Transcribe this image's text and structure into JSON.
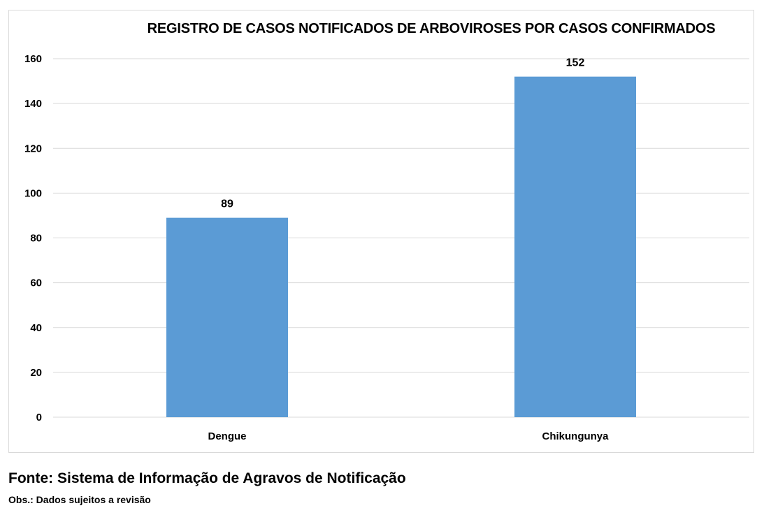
{
  "chart_data": {
    "type": "bar",
    "title": "REGISTRO DE CASOS NOTIFICADOS DE ARBOVIROSES POR CASOS CONFIRMADOS",
    "categories": [
      "Dengue",
      "Chikungunya"
    ],
    "values": [
      89,
      152
    ],
    "data_labels": [
      "89",
      "152"
    ],
    "yticks": [
      "0",
      "20",
      "40",
      "60",
      "80",
      "100",
      "120",
      "140",
      "160"
    ],
    "ylim": [
      0,
      160
    ],
    "grid": true,
    "legend": "none",
    "bar_color": "#5b9bd5"
  },
  "footer": {
    "source": "Fonte: Sistema de Informação de Agravos de Notificação",
    "note": "Obs.: Dados sujeitos a revisão"
  }
}
